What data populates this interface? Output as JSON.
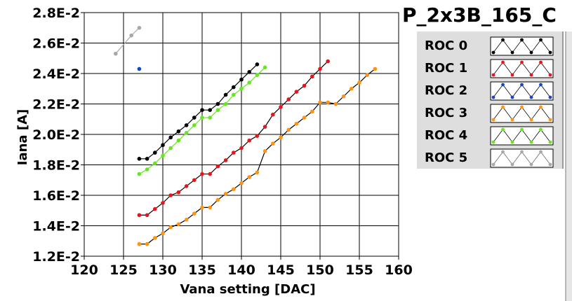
{
  "chart_data": {
    "type": "line",
    "title": "P_2x3B_165_C",
    "xlabel": "Vana setting [DAC]",
    "ylabel": "Iana [A]",
    "xlim": [
      120,
      160
    ],
    "ylim": [
      0.012,
      0.028
    ],
    "x_ticks": [
      120,
      125,
      130,
      135,
      140,
      145,
      150,
      155,
      160
    ],
    "x_tick_labels": [
      "120",
      "125",
      "130",
      "135",
      "140",
      "145",
      "150",
      "155",
      "160"
    ],
    "y_ticks": [
      0.012,
      0.014,
      0.016,
      0.018,
      0.02,
      0.022,
      0.024,
      0.026,
      0.028
    ],
    "y_tick_labels": [
      "1.2E-2",
      "1.4E-2",
      "1.6E-2",
      "1.8E-2",
      "2.0E-2",
      "2.2E-2",
      "2.4E-2",
      "2.6E-2",
      "2.8E-2"
    ],
    "grid": true,
    "legend_position": "right",
    "series": [
      {
        "name": "ROC 0",
        "color": "#000000",
        "x": [
          127,
          128,
          129,
          130,
          131,
          132,
          133,
          134,
          135,
          136,
          137,
          138,
          139,
          140,
          141,
          142
        ],
        "y": [
          0.0184,
          0.0184,
          0.0188,
          0.0193,
          0.0198,
          0.0202,
          0.0206,
          0.0211,
          0.0216,
          0.0216,
          0.022,
          0.0226,
          0.0231,
          0.0236,
          0.0241,
          0.0246
        ]
      },
      {
        "name": "ROC 1",
        "color": "#e8141c",
        "x": [
          127,
          128,
          129,
          130,
          131,
          132,
          133,
          134,
          135,
          136,
          137,
          138,
          139,
          140,
          141,
          142,
          143,
          144,
          145,
          146,
          147,
          148,
          149,
          150,
          151
        ],
        "y": [
          0.0147,
          0.0147,
          0.0151,
          0.0155,
          0.016,
          0.0162,
          0.0166,
          0.017,
          0.0174,
          0.0174,
          0.0179,
          0.0183,
          0.0188,
          0.0191,
          0.0196,
          0.0199,
          0.0205,
          0.0213,
          0.0218,
          0.0223,
          0.0228,
          0.0232,
          0.0238,
          0.0243,
          0.0248
        ]
      },
      {
        "name": "ROC 2",
        "color": "#1646c8",
        "x": [
          127
        ],
        "y": [
          0.0243
        ]
      },
      {
        "name": "ROC 3",
        "color": "#ff9410",
        "x": [
          127,
          128,
          129,
          130,
          131,
          132,
          133,
          134,
          135,
          136,
          137,
          138,
          139,
          140,
          141,
          142,
          143,
          144,
          145,
          146,
          147,
          148,
          149,
          150,
          151,
          152,
          153,
          154,
          155,
          156,
          157
        ],
        "y": [
          0.0128,
          0.0128,
          0.0132,
          0.0135,
          0.0139,
          0.0141,
          0.0144,
          0.0148,
          0.0152,
          0.0152,
          0.0157,
          0.0161,
          0.0164,
          0.0168,
          0.0172,
          0.0175,
          0.0189,
          0.0194,
          0.0198,
          0.0203,
          0.0207,
          0.0211,
          0.0215,
          0.0221,
          0.0221,
          0.022,
          0.0225,
          0.023,
          0.0234,
          0.0239,
          0.0243
        ]
      },
      {
        "name": "ROC 4",
        "color": "#66e61e",
        "x": [
          127,
          128,
          129,
          130,
          131,
          132,
          133,
          134,
          135,
          136,
          137,
          138,
          139,
          140,
          141,
          142,
          143
        ],
        "y": [
          0.0174,
          0.0177,
          0.0181,
          0.0186,
          0.0191,
          0.0196,
          0.0201,
          0.0206,
          0.0211,
          0.0211,
          0.0216,
          0.022,
          0.0226,
          0.023,
          0.0234,
          0.0239,
          0.0244
        ]
      },
      {
        "name": "ROC 5",
        "color": "#a8a8a8",
        "x": [
          124,
          126,
          127
        ],
        "y": [
          0.0253,
          0.0265,
          0.027
        ]
      }
    ]
  }
}
